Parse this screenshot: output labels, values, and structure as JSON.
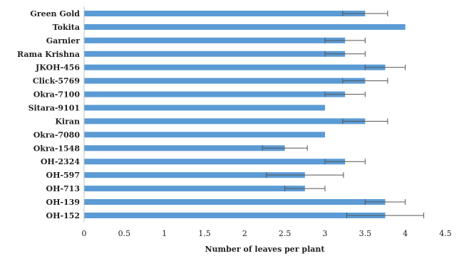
{
  "chart_data": {
    "type": "bar",
    "orientation": "horizontal",
    "title": "",
    "xlabel": "Number of leaves per plant",
    "ylabel": "",
    "xlim": [
      0,
      4.5
    ],
    "xticks": [
      "0",
      "0.5",
      "1",
      "1.5",
      "2",
      "2.5",
      "3",
      "3.5",
      "4",
      "4.5"
    ],
    "grid": false,
    "legend": "none",
    "bar_color": "#5b9bd5",
    "categories": [
      "Green Gold",
      "Tokita",
      "Garnier",
      "Rama Krishna",
      "JKOH-456",
      "Click-5769",
      "Okra-7100",
      "Sitara-9101",
      "Kiran",
      "Okra-7080",
      "Okra-1548",
      "OH-2324",
      "OH-597",
      "OH-713",
      "OH-139",
      "OH-152"
    ],
    "values": [
      3.5,
      4.0,
      3.25,
      3.25,
      3.75,
      3.5,
      3.25,
      3.0,
      3.5,
      3.0,
      2.5,
      3.25,
      2.75,
      2.75,
      3.75,
      3.75
    ],
    "errors": [
      0.28,
      0,
      0.25,
      0.25,
      0.25,
      0.28,
      0.25,
      0,
      0.28,
      0,
      0.28,
      0.25,
      0.48,
      0.25,
      0.25,
      0.48
    ]
  }
}
